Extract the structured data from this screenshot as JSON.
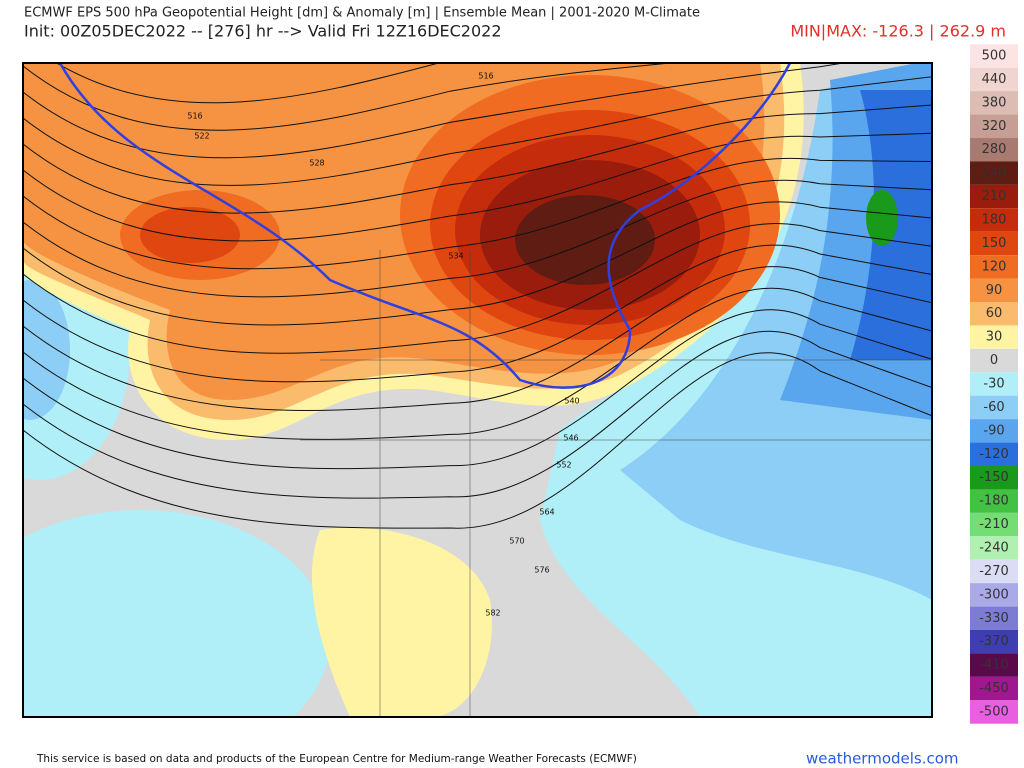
{
  "header": {
    "title": "ECMWF EPS 500 hPa Geopotential Height [dm] & Anomaly [m] | Ensemble Mean | 2001-2020 M-Climate",
    "init": "Init: 00Z05DEC2022 -- [276] hr --> Valid Fri 12Z16DEC2022",
    "minmax": "MIN|MAX: -126.3 | 262.9 m"
  },
  "colorbar": {
    "levels": [
      500,
      440,
      380,
      320,
      280,
      240,
      210,
      180,
      150,
      120,
      90,
      60,
      30,
      0,
      -30,
      -60,
      -90,
      -120,
      -150,
      -180,
      -210,
      -240,
      -270,
      -300,
      -330,
      -370,
      -410,
      -450,
      -500
    ],
    "colors": [
      "#fde4e4",
      "#efd4cf",
      "#dcbcb3",
      "#c69e93",
      "#a97b70",
      "#5e1c12",
      "#9a1c0c",
      "#c42c0c",
      "#e0460f",
      "#f06c22",
      "#f59342",
      "#fbbb6c",
      "#fff4a4",
      "#d9d9d9",
      "#b0eef8",
      "#8ccef5",
      "#5aa6ee",
      "#2a6fdc",
      "#1a9a1a",
      "#43c143",
      "#74de74",
      "#b0f0b0",
      "#dcdcf4",
      "#aaaae8",
      "#7c7cd4",
      "#3e3eb0",
      "#5a0a4a",
      "#a01890",
      "#e860e0"
    ]
  },
  "map": {
    "contour_labels": [
      "516",
      "516",
      "522",
      "528",
      "534",
      "540",
      "546",
      "552",
      "564",
      "570",
      "576",
      "582"
    ]
  },
  "footer": {
    "credit": "This service is based on data and products of the European Centre for Medium-range Weather Forecasts (ECMWF)",
    "site": "weathermodels.com"
  }
}
